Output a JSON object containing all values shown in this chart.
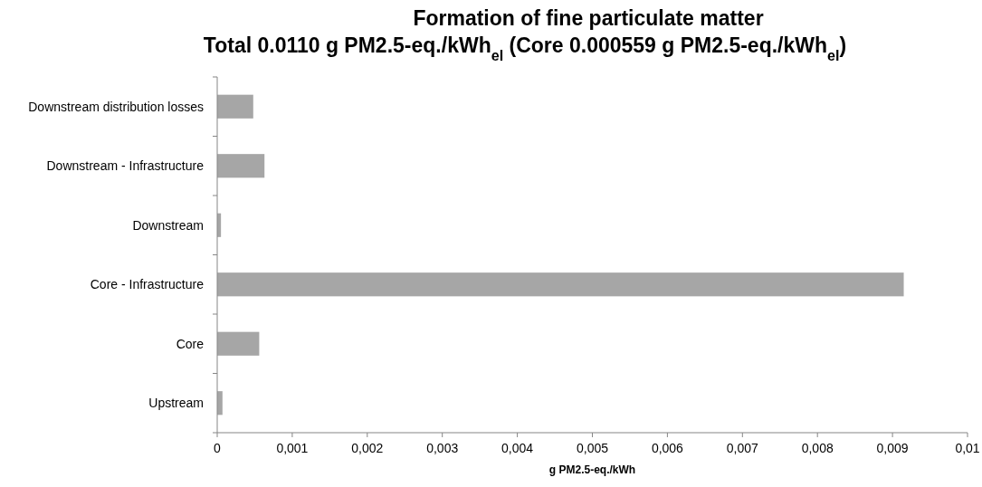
{
  "chart_data": {
    "type": "bar",
    "orientation": "horizontal",
    "title": "Formation of fine particulate matter",
    "subtitle": "Total 0.0110 g PM2.5-eq./kWh$_{el}$  (Core 0.000559 g PM2.5-eq./kWh$_{el}$)",
    "xlabel": "g PM2.5-eq./kWh",
    "categories": [
      "Downstream distribution losses",
      "Downstream - Infrastructure",
      "Downstream",
      "Core - Infrastructure",
      "Core",
      "Upstream"
    ],
    "values": [
      0.00048,
      0.00063,
      5e-05,
      0.00915,
      0.00056,
      7e-05
    ],
    "color": "#a6a6a6",
    "xlim": [
      0,
      0.01
    ],
    "xticks": [
      0,
      {
        "value": 0.001,
        "label": "0,001"
      },
      {
        "value": 0.002,
        "label": "0,002"
      },
      {
        "value": 0.003,
        "label": "0,003"
      },
      {
        "value": 0.004,
        "label": "0,004"
      },
      {
        "value": 0.005,
        "label": "0,005"
      },
      {
        "value": 0.006,
        "label": "0,006"
      },
      {
        "value": 0.007,
        "label": "0,007"
      },
      {
        "value": 0.008,
        "label": "0,008"
      },
      {
        "value": 0.009,
        "label": "0,009"
      },
      {
        "value": 0.01,
        "label": "0,01"
      }
    ],
    "grid": false
  }
}
